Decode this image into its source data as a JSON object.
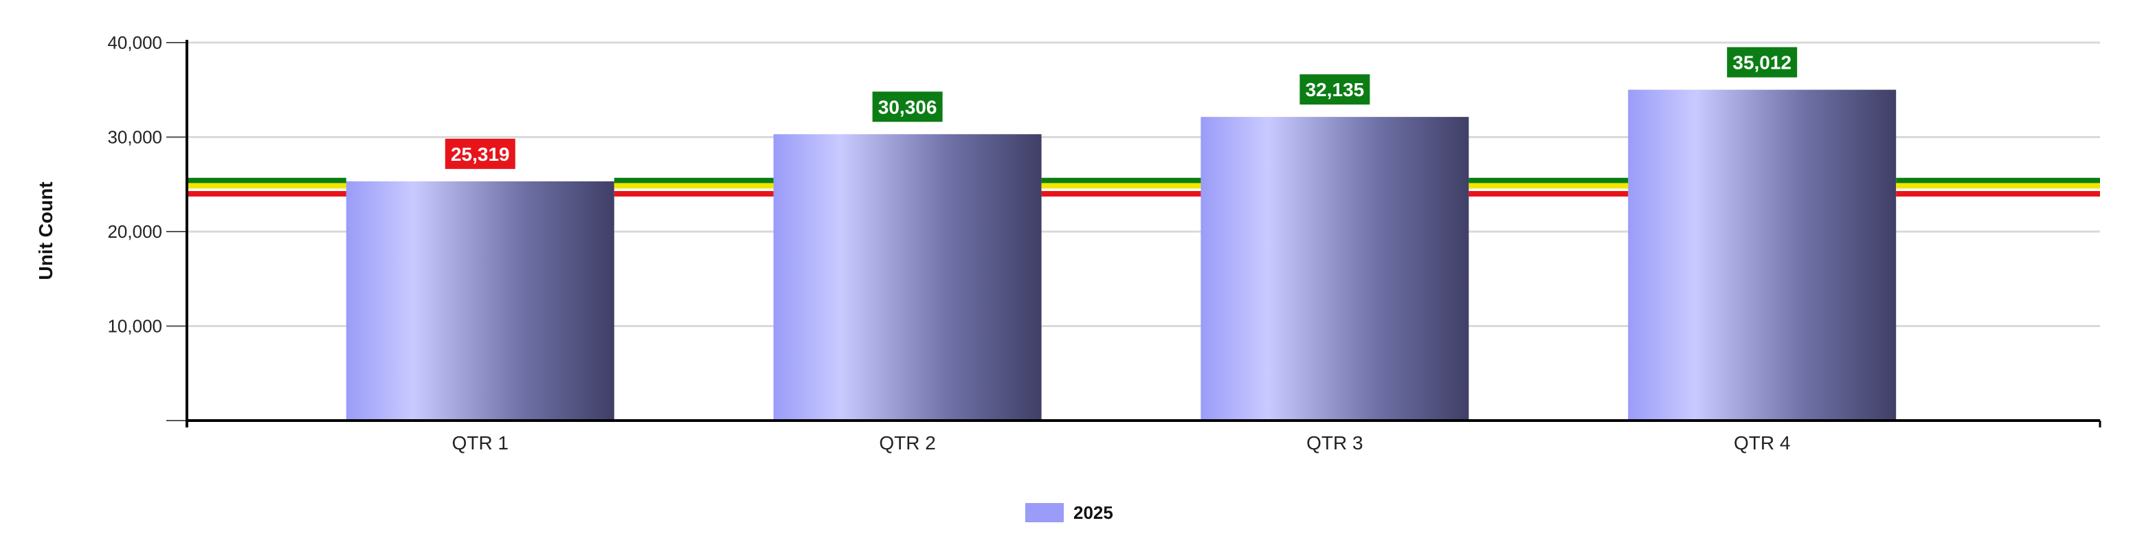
{
  "chart_data": {
    "type": "bar",
    "categories": [
      "QTR 1",
      "QTR 2",
      "QTR 3",
      "QTR 4"
    ],
    "series": [
      {
        "name": "2025",
        "values": [
          25319,
          30306,
          32135,
          35012
        ]
      }
    ],
    "data_labels": [
      "25,319",
      "30,306",
      "32,135",
      "35,012"
    ],
    "data_label_colors": [
      "#e8141c",
      "#0b7d14",
      "#0b7d14",
      "#0b7d14"
    ],
    "ylabel": "Unit Count",
    "xlabel": "",
    "title": "",
    "ylim": [
      0,
      40000
    ],
    "yticks": [
      10000,
      20000,
      30000,
      40000
    ],
    "ytick_labels": [
      "10,000",
      "20,000",
      "30,000",
      "40,000"
    ],
    "reference_lines": [
      {
        "value": 25400,
        "color": "#0b7d14"
      },
      {
        "value": 24850,
        "color": "#f2e600"
      },
      {
        "value": 24000,
        "color": "#e8141c"
      }
    ],
    "grid": true,
    "legend_position": "bottom-center",
    "colors": {
      "bar_gradient": [
        "#9a9cf8",
        "#c9caff",
        "#7072a8",
        "#3f3f66"
      ],
      "legend_swatch": "#9a9cf8",
      "grid": "#d9d9d9",
      "axis": "#000000"
    }
  }
}
